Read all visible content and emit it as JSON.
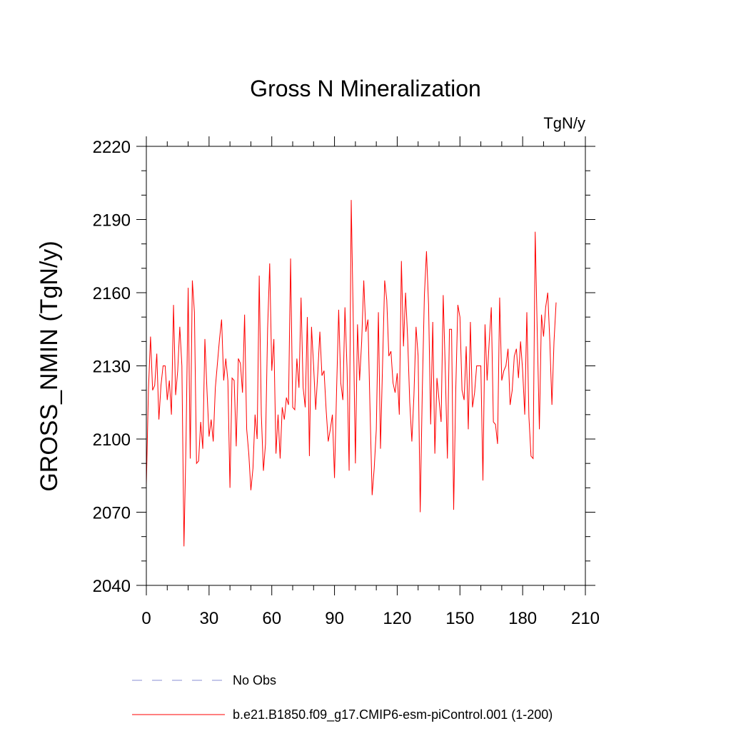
{
  "chart_data": {
    "type": "line",
    "title": "Gross N Mineralization",
    "units": "TgN/y",
    "ylabel": "GROSS_NMIN  (TgN/y)",
    "xlabel": "",
    "xlim": [
      0,
      210
    ],
    "ylim": [
      2040,
      2220
    ],
    "xticks": [
      0,
      30,
      60,
      90,
      120,
      150,
      180,
      210
    ],
    "yticks": [
      2040,
      2070,
      2100,
      2130,
      2160,
      2190,
      2220
    ],
    "series": [
      {
        "name": "b.e21.B1850.f09_g17.CMIP6-esm-piControl.001 (1-200)",
        "color": "#ff0000",
        "x_start": 0,
        "values": [
          2081,
          2120,
          2142,
          2120,
          2122,
          2135,
          2108,
          2122,
          2130,
          2130,
          2116,
          2124,
          2110,
          2155,
          2118,
          2128,
          2146,
          2130,
          2056,
          2100,
          2162,
          2092,
          2165,
          2152,
          2090,
          2091,
          2107,
          2096,
          2141,
          2120,
          2101,
          2108,
          2099,
          2121,
          2131,
          2141,
          2149,
          2124,
          2133,
          2124,
          2080,
          2125,
          2124,
          2097,
          2133,
          2131,
          2119,
          2151,
          2104,
          2094,
          2079,
          2088,
          2110,
          2100,
          2167,
          2110,
          2087,
          2098,
          2145,
          2172,
          2128,
          2141,
          2094,
          2110,
          2092,
          2113,
          2108,
          2117,
          2114,
          2174,
          2113,
          2112,
          2133,
          2121,
          2158,
          2121,
          2113,
          2150,
          2093,
          2146,
          2130,
          2112,
          2127,
          2144,
          2126,
          2128,
          2112,
          2099,
          2104,
          2110,
          2084,
          2120,
          2153,
          2123,
          2116,
          2154,
          2129,
          2087,
          2198,
          2147,
          2090,
          2147,
          2124,
          2140,
          2165,
          2144,
          2149,
          2112,
          2077,
          2088,
          2104,
          2152,
          2096,
          2131,
          2165,
          2157,
          2134,
          2136,
          2123,
          2119,
          2127,
          2110,
          2173,
          2138,
          2160,
          2141,
          2115,
          2099,
          2118,
          2146,
          2134,
          2070,
          2120,
          2159,
          2177,
          2155,
          2106,
          2148,
          2094,
          2125,
          2116,
          2107,
          2159,
          2128,
          2092,
          2145,
          2145,
          2071,
          2120,
          2155,
          2150,
          2120,
          2116,
          2138,
          2104,
          2148,
          2113,
          2119,
          2130,
          2130,
          2130,
          2083,
          2147,
          2124,
          2140,
          2154,
          2107,
          2106,
          2098,
          2158,
          2124,
          2128,
          2130,
          2137,
          2114,
          2120,
          2134,
          2137,
          2125,
          2140,
          2128,
          2110,
          2152,
          2109,
          2093,
          2092,
          2185,
          2143,
          2104,
          2151,
          2142,
          2154,
          2160,
          2140,
          2114,
          2140,
          2156
        ]
      }
    ],
    "legend": [
      {
        "label": "No Obs",
        "style": "dashed",
        "color": "#8a8fd6"
      },
      {
        "label": "b.e21.B1850.f09_g17.CMIP6-esm-piControl.001 (1-200)",
        "style": "solid",
        "color": "#ff0000"
      }
    ]
  }
}
